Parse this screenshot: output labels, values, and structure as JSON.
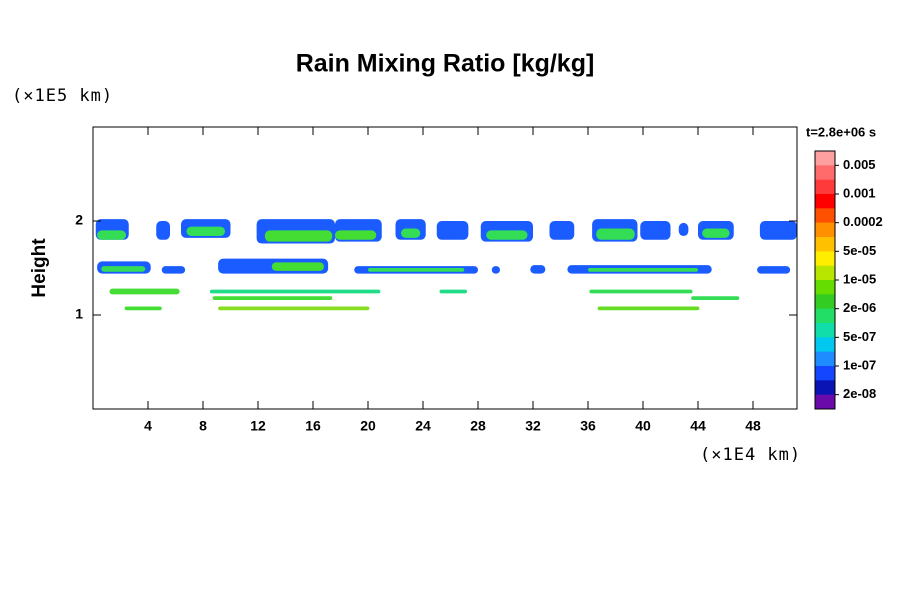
{
  "chart_data": {
    "type": "contour",
    "title": "Rain Mixing Ratio [kg/kg]",
    "ylabel": "Height",
    "xunit": "(×1E4 km)",
    "yunit": "(×1E5 km)",
    "xlim": [
      0,
      51.2
    ],
    "ylim": [
      0,
      3
    ],
    "xticks": [
      4,
      8,
      12,
      16,
      20,
      24,
      28,
      32,
      36,
      40,
      44,
      48
    ],
    "yticks": [
      1,
      2
    ],
    "cells": [
      {
        "x": [
          0.2,
          2.6
        ],
        "y": [
          1.8,
          2.02
        ],
        "color": "#1a5cff"
      },
      {
        "x": [
          4.6,
          5.6
        ],
        "y": [
          1.8,
          2.0
        ],
        "color": "#1a5cff"
      },
      {
        "x": [
          6.4,
          10.0
        ],
        "y": [
          1.82,
          2.02
        ],
        "color": "#1a5cff"
      },
      {
        "x": [
          11.9,
          17.6
        ],
        "y": [
          1.76,
          2.02
        ],
        "color": "#1a5cff"
      },
      {
        "x": [
          17.6,
          21.0
        ],
        "y": [
          1.78,
          2.02
        ],
        "color": "#1a5cff"
      },
      {
        "x": [
          22.0,
          24.2
        ],
        "y": [
          1.8,
          2.02
        ],
        "color": "#1a5cff"
      },
      {
        "x": [
          25.0,
          27.3
        ],
        "y": [
          1.8,
          2.0
        ],
        "color": "#1a5cff"
      },
      {
        "x": [
          28.2,
          32.0
        ],
        "y": [
          1.78,
          2.0
        ],
        "color": "#1a5cff"
      },
      {
        "x": [
          33.2,
          35.0
        ],
        "y": [
          1.8,
          2.0
        ],
        "color": "#1a5cff"
      },
      {
        "x": [
          36.3,
          39.6
        ],
        "y": [
          1.78,
          2.02
        ],
        "color": "#1a5cff"
      },
      {
        "x": [
          39.8,
          42.0
        ],
        "y": [
          1.8,
          2.0
        ],
        "color": "#1a5cff"
      },
      {
        "x": [
          42.6,
          43.3
        ],
        "y": [
          1.84,
          1.98
        ],
        "color": "#1a5cff"
      },
      {
        "x": [
          44.0,
          46.6
        ],
        "y": [
          1.8,
          2.0
        ],
        "color": "#1a5cff"
      },
      {
        "x": [
          48.5,
          51.2
        ],
        "y": [
          1.8,
          2.0
        ],
        "color": "#1a5cff"
      },
      {
        "x": [
          0.3,
          2.4
        ],
        "y": [
          1.8,
          1.9
        ],
        "color": "#33dd55"
      },
      {
        "x": [
          6.8,
          9.6
        ],
        "y": [
          1.84,
          1.94
        ],
        "color": "#33dd55"
      },
      {
        "x": [
          12.5,
          17.4
        ],
        "y": [
          1.78,
          1.9
        ],
        "color": "#44dd33"
      },
      {
        "x": [
          17.6,
          20.6
        ],
        "y": [
          1.8,
          1.9
        ],
        "color": "#44dd33"
      },
      {
        "x": [
          22.4,
          23.8
        ],
        "y": [
          1.82,
          1.92
        ],
        "color": "#33dd55"
      },
      {
        "x": [
          28.6,
          31.6
        ],
        "y": [
          1.8,
          1.9
        ],
        "color": "#33dd55"
      },
      {
        "x": [
          36.6,
          39.4
        ],
        "y": [
          1.8,
          1.92
        ],
        "color": "#33dd55"
      },
      {
        "x": [
          44.3,
          46.3
        ],
        "y": [
          1.82,
          1.92
        ],
        "color": "#33dd55"
      },
      {
        "x": [
          0.3,
          4.2
        ],
        "y": [
          1.44,
          1.57
        ],
        "color": "#1a5cff"
      },
      {
        "x": [
          5.0,
          6.7
        ],
        "y": [
          1.44,
          1.52
        ],
        "color": "#1a5cff"
      },
      {
        "x": [
          9.1,
          17.1
        ],
        "y": [
          1.44,
          1.6
        ],
        "color": "#1a5cff"
      },
      {
        "x": [
          19.0,
          28.0
        ],
        "y": [
          1.44,
          1.52
        ],
        "color": "#1a5cff"
      },
      {
        "x": [
          29.0,
          29.6
        ],
        "y": [
          1.44,
          1.52
        ],
        "color": "#1a5cff"
      },
      {
        "x": [
          31.8,
          32.9
        ],
        "y": [
          1.44,
          1.53
        ],
        "color": "#1a5cff"
      },
      {
        "x": [
          34.5,
          45.0
        ],
        "y": [
          1.44,
          1.53
        ],
        "color": "#1a5cff"
      },
      {
        "x": [
          48.3,
          50.7
        ],
        "y": [
          1.44,
          1.52
        ],
        "color": "#1a5cff"
      },
      {
        "x": [
          0.6,
          3.8
        ],
        "y": [
          1.46,
          1.52
        ],
        "color": "#33dd55"
      },
      {
        "x": [
          13.0,
          16.8
        ],
        "y": [
          1.47,
          1.56
        ],
        "color": "#44dd33"
      },
      {
        "x": [
          20.0,
          27.0
        ],
        "y": [
          1.46,
          1.5
        ],
        "color": "#33dd55"
      },
      {
        "x": [
          36.0,
          44.0
        ],
        "y": [
          1.46,
          1.5
        ],
        "color": "#33dd55"
      },
      {
        "x": [
          1.2,
          6.3
        ],
        "y": [
          1.22,
          1.28
        ],
        "color": "#44dd33"
      },
      {
        "x": [
          8.5,
          20.9
        ],
        "y": [
          1.23,
          1.27
        ],
        "color": "#22dd88"
      },
      {
        "x": [
          25.2,
          27.2
        ],
        "y": [
          1.23,
          1.27
        ],
        "color": "#22dd88"
      },
      {
        "x": [
          36.1,
          43.6
        ],
        "y": [
          1.23,
          1.27
        ],
        "color": "#33dd55"
      },
      {
        "x": [
          8.7,
          17.4
        ],
        "y": [
          1.16,
          1.2
        ],
        "color": "#44dd33"
      },
      {
        "x": [
          43.5,
          47.0
        ],
        "y": [
          1.16,
          1.2
        ],
        "color": "#33dd55"
      },
      {
        "x": [
          2.3,
          5.0
        ],
        "y": [
          1.05,
          1.09
        ],
        "color": "#44dd33"
      },
      {
        "x": [
          9.1,
          20.1
        ],
        "y": [
          1.05,
          1.09
        ],
        "color": "#88dd22"
      },
      {
        "x": [
          36.7,
          44.1
        ],
        "y": [
          1.05,
          1.09
        ],
        "color": "#66dd22"
      }
    ],
    "colorbar": {
      "title": "t=2.8e+06 s",
      "colors": [
        "#ffa0a0",
        "#ff6a6a",
        "#ff3a3a",
        "#ff0000",
        "#ff5000",
        "#ff9000",
        "#ffc000",
        "#ffee00",
        "#b8e600",
        "#66dd00",
        "#33cc22",
        "#22dd66",
        "#11ddaa",
        "#00c8ee",
        "#1e8cff",
        "#1446ff",
        "#0a14b4",
        "#6a0aaa"
      ],
      "levels": [
        0.005,
        0.001,
        0.0002,
        {
          "value": 5e-05,
          "label": "5e-05"
        },
        {
          "value": 1e-05,
          "label": "1e-05"
        },
        {
          "value": 2e-06,
          "label": "2e-06"
        },
        {
          "value": 5e-07,
          "label": "5e-07"
        },
        {
          "value": 1e-07,
          "label": "1e-07"
        },
        {
          "value": 2e-08,
          "label": "2e-08"
        }
      ]
    }
  }
}
